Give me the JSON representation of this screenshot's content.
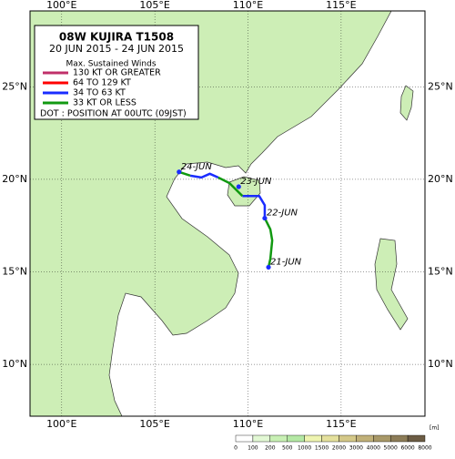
{
  "chart_data": {
    "type": "track-map",
    "title": "08W  KUJIRA  T1508",
    "subtitle": "20 JUN 2015 - 24 JUN 2015",
    "legend_title": "Max. Sustained Winds",
    "legend": [
      {
        "name": "130 KT OR GREATER",
        "color": "#c0306a"
      },
      {
        "name": "64 TO 129 KT",
        "color": "#ff0000"
      },
      {
        "name": "34 TO 63 KT",
        "color": "#1a2cff"
      },
      {
        "name": "33 KT OR LESS",
        "color": "#119911"
      }
    ],
    "note": "DOT : POSITION AT 00UTC (09JST)",
    "xlim": [
      98.3,
      119.5
    ],
    "ylim": [
      7.2,
      29.1
    ],
    "xticks": [
      {
        "value": 100,
        "label": "100°E"
      },
      {
        "value": 105,
        "label": "105°E"
      },
      {
        "value": 110,
        "label": "110°E"
      },
      {
        "value": 115,
        "label": "115°E"
      }
    ],
    "yticks": [
      {
        "value": 10,
        "label": "10°N"
      },
      {
        "value": 15,
        "label": "15°N"
      },
      {
        "value": 20,
        "label": "20°N"
      },
      {
        "value": 25,
        "label": "25°N"
      }
    ],
    "track": [
      {
        "color": "#119911",
        "lon": [
          111.1,
          111.2,
          111.3,
          111.2,
          110.9
        ],
        "lat": [
          15.25,
          15.7,
          16.7,
          17.3,
          17.9
        ]
      },
      {
        "color": "#1a2cff",
        "lon": [
          110.9,
          110.9,
          110.6,
          109.7
        ],
        "lat": [
          17.9,
          18.6,
          19.1,
          19.1
        ]
      },
      {
        "color": "#119911",
        "lon": [
          109.7,
          109.0,
          108.4
        ],
        "lat": [
          19.1,
          19.8,
          20.1
        ]
      },
      {
        "color": "#1a2cff",
        "lon": [
          108.4,
          107.95,
          107.5,
          106.9
        ],
        "lat": [
          20.1,
          20.3,
          20.1,
          20.2
        ]
      },
      {
        "color": "#119911",
        "lon": [
          106.9,
          106.3
        ],
        "lat": [
          20.2,
          20.4
        ]
      }
    ],
    "positions": [
      {
        "label": "21-JUN",
        "lon": 111.1,
        "lat": 15.25
      },
      {
        "label": "22-JUN",
        "lon": 110.9,
        "lat": 17.9
      },
      {
        "label": "23-JUN",
        "lon": 109.5,
        "lat": 19.6
      },
      {
        "label": "24-JUN",
        "lon": 106.3,
        "lat": 20.4
      }
    ],
    "colorbar": {
      "ticks": [
        0,
        100,
        200,
        500,
        1000,
        1500,
        2000,
        3000,
        4000,
        5000,
        6000,
        8000
      ],
      "colors": [
        "#ffffff",
        "#e2f8d4",
        "#c8f0b4",
        "#b4e8a4",
        "#eef4b0",
        "#e4e09c",
        "#d4c888",
        "#c0b078",
        "#a89868",
        "#8c7c58",
        "#6c5c44"
      ],
      "unit": "[m]"
    }
  }
}
